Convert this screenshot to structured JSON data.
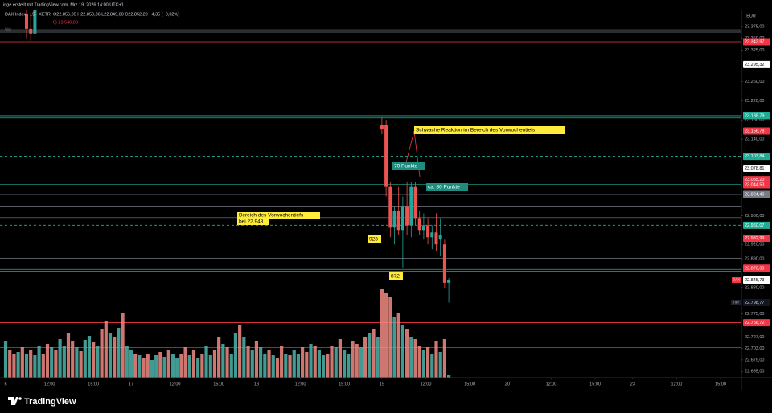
{
  "header": {
    "credit": "inge erstellt mit TradingView.com, Mrz 19, 2026 14:00 UTC+1",
    "symbol": "DAX Index · 15 · XETR",
    "ohlc": "O22.856,05 H22.859,36 L22.849,60 C22.852,20 −4,35 (−0,02%)",
    "line2": "0) 23.540,08",
    "line3": "Vol"
  },
  "chart_data": {
    "type": "candlestick",
    "currency": "EUR",
    "up_color": "#26a69a",
    "down_color": "#ef5350",
    "xlim": [
      -1.35,
      176
    ],
    "ylim": [
      22642,
      23410
    ],
    "xticks": [
      {
        "value": 0,
        "label": "6"
      },
      {
        "value": 10.5,
        "label": "12:00"
      },
      {
        "value": 21,
        "label": "15:00"
      },
      {
        "value": 30,
        "label": "17"
      },
      {
        "value": 40.5,
        "label": "12:00"
      },
      {
        "value": 51,
        "label": "15:00"
      },
      {
        "value": 60,
        "label": "18"
      },
      {
        "value": 70.5,
        "label": "12:00"
      },
      {
        "value": 81,
        "label": "15:00"
      },
      {
        "value": 90,
        "label": "19"
      },
      {
        "value": 100.5,
        "label": "12:00"
      },
      {
        "value": 111,
        "label": "15:00"
      },
      {
        "value": 120,
        "label": "20"
      },
      {
        "value": 130.5,
        "label": "12:00"
      },
      {
        "value": 141,
        "label": "15:00"
      },
      {
        "value": 150,
        "label": "23"
      },
      {
        "value": 160.5,
        "label": "12:00"
      },
      {
        "value": 171,
        "label": "15:00"
      }
    ],
    "yticks": [
      {
        "value": 23375,
        "label": "23.375,00"
      },
      {
        "value": 23350,
        "label": "23.350,00"
      },
      {
        "value": 23325,
        "label": "23.325,00"
      },
      {
        "value": 23260,
        "label": "23.260,00"
      },
      {
        "value": 23220,
        "label": "23.220,00"
      },
      {
        "value": 23180,
        "label": "23.180,00"
      },
      {
        "value": 23140,
        "label": "23.140,00"
      },
      {
        "value": 22980,
        "label": "22.980,00"
      },
      {
        "value": 22920,
        "label": "22.920,00"
      },
      {
        "value": 22890,
        "label": "22.890,00"
      },
      {
        "value": 22830,
        "label": "22.830,00"
      },
      {
        "value": 22775,
        "label": "22.775,00"
      },
      {
        "value": 22727,
        "label": "22.727,00"
      },
      {
        "value": 22703,
        "label": "22.703,00"
      },
      {
        "value": 22679,
        "label": "22.679,00"
      },
      {
        "value": 22655,
        "label": "22.655,00"
      }
    ],
    "candles": {
      "x": [
        5,
        6,
        7,
        90,
        91,
        92,
        93,
        94,
        95,
        96,
        97,
        98,
        99,
        100,
        101,
        102,
        103,
        104,
        105,
        106
      ],
      "open": [
        23400,
        23370,
        23360,
        23170,
        23170,
        23040,
        22955,
        22990,
        22950,
        23000,
        22960,
        23040,
        22975,
        22950,
        22960,
        22935,
        22945,
        22930,
        22920,
        22840
      ],
      "high": [
        23430,
        23400,
        23420,
        23185,
        23180,
        23050,
        23000,
        23040,
        23020,
        23050,
        23050,
        23050,
        22990,
        22985,
        22975,
        22960,
        22985,
        22975,
        22930,
        22850
      ],
      "low": [
        23350,
        23345,
        23345,
        23150,
        23020,
        22935,
        22920,
        22940,
        22870,
        22940,
        22935,
        22960,
        22940,
        22930,
        22920,
        22910,
        22905,
        22895,
        22830,
        22798.77
      ],
      "close": [
        23370,
        23360,
        23410,
        23160,
        23040,
        22955,
        22990,
        22950,
        23000,
        22960,
        23040,
        22975,
        22950,
        22960,
        22935,
        22945,
        22920,
        22940,
        22840,
        22845.73
      ]
    },
    "volume": {
      "vlim": [
        0,
        160
      ],
      "values": [
        45,
        35,
        30,
        32,
        38,
        30,
        35,
        28,
        40,
        30,
        42,
        38,
        35,
        48,
        40,
        55,
        45,
        38,
        33,
        47,
        52,
        44,
        40,
        60,
        70,
        55,
        50,
        62,
        80,
        40,
        35,
        30,
        28,
        25,
        30,
        22,
        28,
        32,
        26,
        35,
        30,
        25,
        30,
        38,
        28,
        35,
        24,
        30,
        40,
        28,
        35,
        50,
        42,
        38,
        30,
        55,
        65,
        50,
        40,
        35,
        45,
        38,
        30,
        35,
        28,
        25,
        40,
        30,
        28,
        35,
        30,
        38,
        32,
        42,
        40,
        35,
        28,
        30,
        40,
        38,
        48,
        35,
        30,
        45,
        42,
        38,
        50,
        55,
        60,
        50,
        110,
        105,
        100,
        75,
        80,
        65,
        60,
        50,
        48,
        40,
        35,
        38,
        30,
        45,
        32,
        48,
        3
      ],
      "up": [
        1,
        0,
        0,
        1,
        0,
        1,
        0,
        1,
        1,
        0,
        0,
        1,
        0,
        1,
        1,
        0,
        0,
        1,
        0,
        1,
        1,
        0,
        1,
        0,
        0,
        1,
        0,
        1,
        0,
        1,
        1,
        0,
        1,
        0,
        0,
        1,
        1,
        0,
        1,
        0,
        1,
        1,
        0,
        0,
        1,
        0,
        1,
        0,
        1,
        1,
        0,
        0,
        1,
        0,
        1,
        1,
        0,
        1,
        0,
        1,
        0,
        1,
        1,
        0,
        1,
        0,
        0,
        1,
        0,
        1,
        1,
        0,
        0,
        1,
        0,
        1,
        1,
        0,
        0,
        1,
        0,
        1,
        1,
        0,
        0,
        1,
        0,
        1,
        0,
        1,
        0,
        0,
        0,
        1,
        0,
        1,
        0,
        1,
        0,
        0,
        1,
        0,
        1,
        0,
        1,
        0,
        1
      ],
      "up_color": "#4db6ac",
      "down_color": "#f28b82"
    },
    "levels": [
      {
        "value": 23342.97,
        "label": "23.342,97",
        "bg": "#f23645",
        "fg": "#ffffff",
        "line": "solid",
        "line_color": "#f23645"
      },
      {
        "value": 23295.32,
        "label": "23.295,32",
        "bg": "#ffffff",
        "fg": "#000000"
      },
      {
        "value": 23188.79,
        "label": "23.188,79",
        "bg": "#22ab94",
        "fg": "#ffffff",
        "line": "solid",
        "line_color": "#22ab94"
      },
      {
        "value": 23156.78,
        "label": "23.156,78",
        "bg": "#f23645",
        "fg": "#ffffff"
      },
      {
        "value": 23103.84,
        "label": "23.103,84",
        "bg": "#22ab94",
        "fg": "#ffffff",
        "line": "dashed",
        "line_color": "#22ab94"
      },
      {
        "value": 23078.81,
        "label": "23.078,81",
        "bg": "#ffffff",
        "fg": "#000000"
      },
      {
        "value": 23055.2,
        "label": "23.055,20",
        "bg": "#f23645",
        "fg": "#ffffff"
      },
      {
        "value": 23044.53,
        "label": "23.044,53",
        "bg": "#f23645",
        "fg": "#ffffff"
      },
      {
        "value": 23024.4,
        "label": "23.024,40",
        "bg": "#787b86",
        "fg": "#ffffff",
        "line": "solid",
        "line_color": "#787b86"
      },
      {
        "value": 22960.07,
        "label": "22.960,07",
        "bg": "#22ab94",
        "fg": "#ffffff",
        "line": "dashed",
        "line_color": "#22ab94"
      },
      {
        "value": 22932.99,
        "label": "22.932,99",
        "bg": "#f23645",
        "fg": "#ffffff"
      },
      {
        "value": 22870.39,
        "label": "22.870,39",
        "bg": "#f23645",
        "fg": "#ffffff"
      },
      {
        "value": 22845.73,
        "label": "22.845,73",
        "bg": "#ffffff",
        "fg": "#000000",
        "line": "dotted",
        "line_color": "#f28b82"
      },
      {
        "value": 22798.77,
        "label": "22.798,77",
        "bg": "#131722",
        "fg": "#d1d4dc"
      },
      {
        "value": 22756.72,
        "label": "22.756,72",
        "bg": "#f23645",
        "fg": "#ffffff",
        "line": "solid",
        "line_color": "#f23645"
      }
    ],
    "lines": [
      {
        "value": 23374,
        "color": "#787b86"
      },
      {
        "value": 23368,
        "color": "#787b86"
      },
      {
        "value": 23363,
        "color": "#787b86"
      },
      {
        "value": 23184,
        "color": "#22ab94"
      },
      {
        "value": 23045,
        "color": "#22ab94"
      },
      {
        "value": 23000,
        "color": "#787b86"
      },
      {
        "value": 22976,
        "color": "#787b86"
      },
      {
        "value": 22891,
        "color": "#787b86"
      },
      {
        "value": 22868,
        "color": "#22ab94"
      },
      {
        "value": 22864,
        "color": "#22ab94"
      },
      {
        "value": 22705,
        "color": "#787b86"
      }
    ],
    "badges": [
      "DAX",
      "Tief"
    ],
    "annotations": [
      "Schwache Reaktion im Bereich des Vorwochentiefs",
      "70 Punkte",
      "ca. 80 Punkte",
      "Bereich des Vorwochentiefs",
      "bei 22.943",
      "923",
      "872"
    ]
  },
  "footer": {
    "brand": "TradingView"
  }
}
